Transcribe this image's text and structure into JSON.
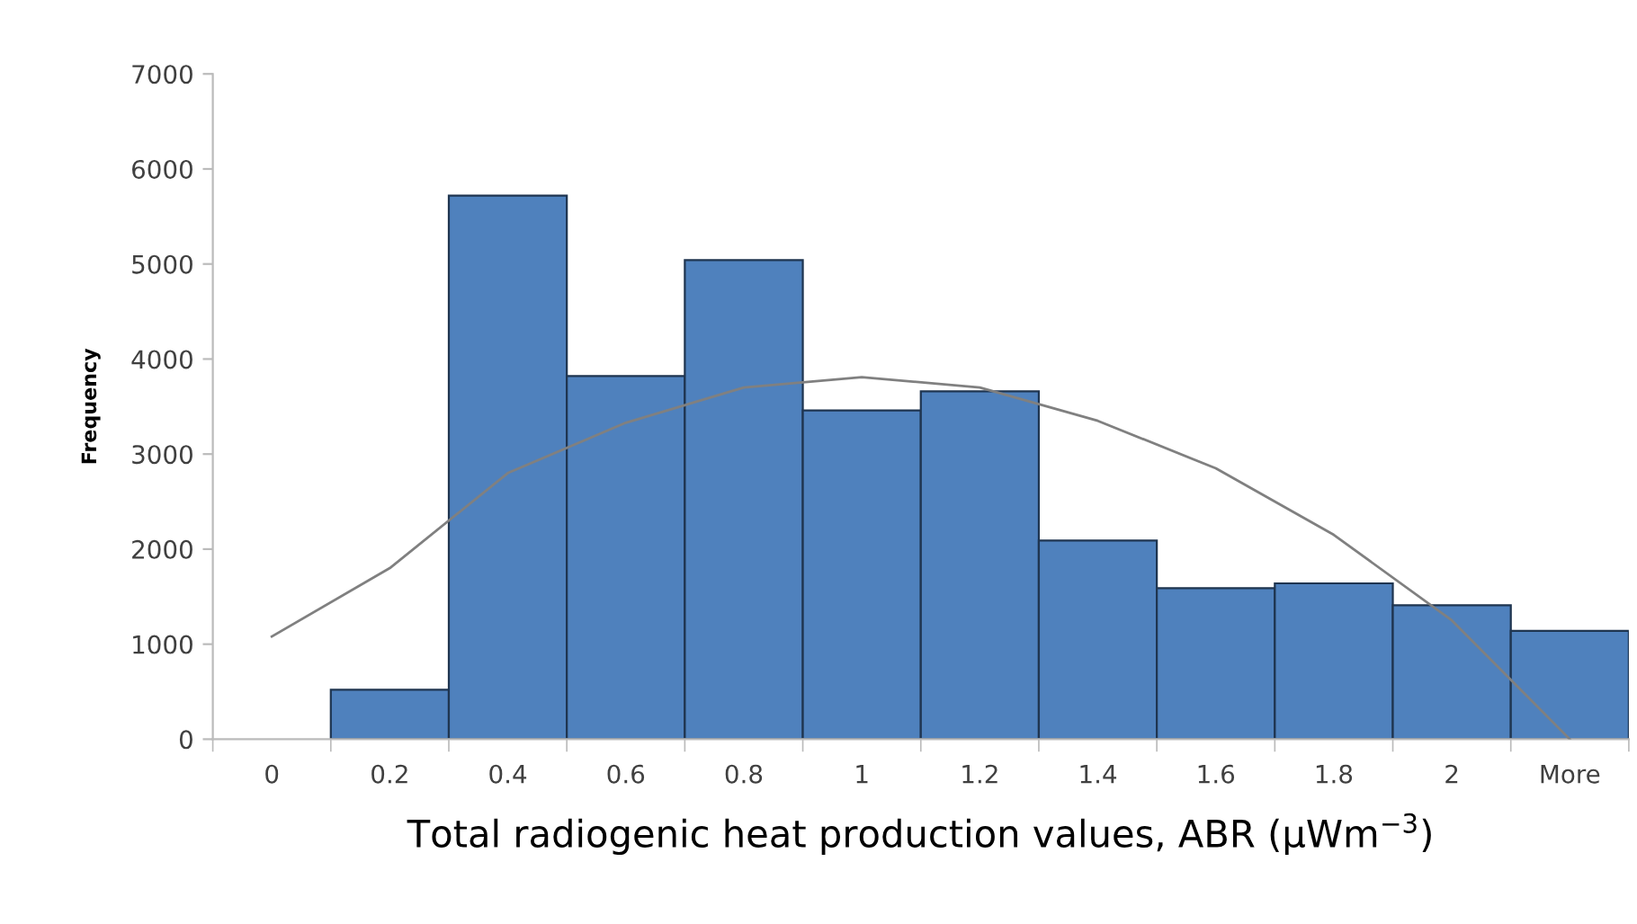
{
  "chart_data": {
    "type": "bar",
    "xlabel": "Total radiogenic heat production values, ABR (µWm$^{−3}$)",
    "ylabel": "Frequency",
    "categories": [
      "0",
      "0.2",
      "0.4",
      "0.6",
      "0.8",
      "1",
      "1.2",
      "1.4",
      "1.6",
      "1.8",
      "2",
      "More"
    ],
    "series": [
      {
        "color": "#4f81bd",
        "values": [
          0,
          520,
          5720,
          3820,
          5040,
          3460,
          3660,
          2090,
          1590,
          1640,
          1410,
          1140
        ]
      },
      {
        "type": "line",
        "color": "#808080",
        "values": [
          1080,
          1800,
          2800,
          3330,
          3700,
          3810,
          3700,
          3350,
          2850,
          2150,
          1250,
          0
        ]
      }
    ],
    "ylim": [
      0,
      7000
    ],
    "yticks": [
      0,
      1000,
      2000,
      3000,
      4000,
      5000,
      6000,
      7000
    ],
    "grid": false,
    "legend": false
  }
}
